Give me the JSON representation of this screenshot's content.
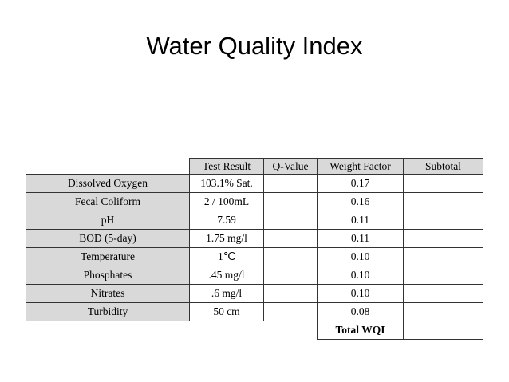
{
  "header": {
    "title": "Water Quality Index"
  },
  "table": {
    "columns": [
      "Test Result",
      "Q-Value",
      "Weight Factor",
      "Subtotal"
    ],
    "rows": [
      {
        "label": "Dissolved Oxygen",
        "test_result": "103.1% Sat.",
        "weight_factor": "0.17"
      },
      {
        "label": "Fecal Coliform",
        "test_result": "2 / 100mL",
        "weight_factor": "0.16"
      },
      {
        "label": "pH",
        "test_result": "7.59",
        "weight_factor": "0.11"
      },
      {
        "label": "BOD (5-day)",
        "test_result": "1.75 mg/l",
        "weight_factor": "0.11"
      },
      {
        "label": "Temperature",
        "test_result": "1℃",
        "weight_factor": "0.10"
      },
      {
        "label": "Phosphates",
        "test_result": ".45 mg/l",
        "weight_factor": "0.10"
      },
      {
        "label": "Nitrates",
        "test_result": ".6 mg/l",
        "weight_factor": "0.10"
      },
      {
        "label": "Turbidity",
        "test_result": "50 cm",
        "weight_factor": "0.08"
      }
    ],
    "total_label": "Total WQI"
  }
}
